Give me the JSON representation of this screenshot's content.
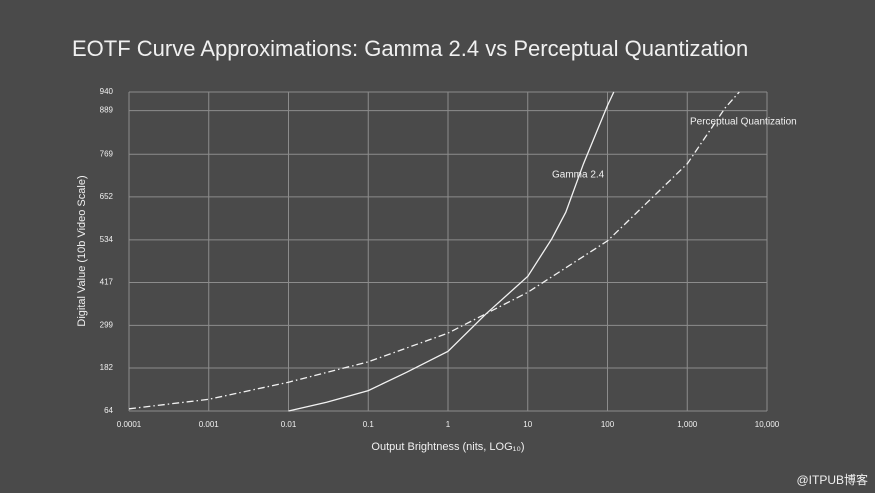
{
  "chart_data": {
    "type": "line",
    "title": "EOTF Curve Approximations: Gamma 2.4 vs Perceptual Quantization",
    "x_label": "Output Brightness (nits, LOG₁₀)",
    "y_label": "Digital Value (10b Video Scale)",
    "xscale": "log",
    "xlim": [
      0.0001,
      10000
    ],
    "xticks": [
      0.0001,
      0.001,
      0.01,
      0.1,
      1,
      10,
      100,
      {
        "value": 1000,
        "label": "1,000"
      },
      {
        "value": 10000,
        "label": "10,000"
      }
    ],
    "ylim": [
      64,
      940
    ],
    "yticks": [
      64,
      182,
      299,
      417,
      534,
      652,
      769,
      889,
      940
    ],
    "grid": true,
    "series": [
      {
        "name": "Gamma 2.4",
        "color": "#f2f2f2",
        "linestyle": "solid",
        "x": [
          0.01,
          0.03,
          0.1,
          0.3,
          1,
          3,
          10,
          20,
          30,
          50,
          100,
          120
        ],
        "values": [
          64,
          88,
          120,
          170,
          228,
          331,
          434,
          537,
          610,
          743,
          903,
          940
        ]
      },
      {
        "name": "Perceptual Quantization",
        "color": "#f2f2f2",
        "linestyle": "dashdot",
        "x": [
          0.0001,
          0.001,
          0.01,
          0.1,
          1,
          10,
          100,
          1000,
          3000,
          4500
        ],
        "values": [
          70,
          96,
          143,
          199,
          278,
          390,
          531,
          743,
          897,
          940
        ]
      }
    ],
    "watermark": "@ITPUB博客"
  }
}
